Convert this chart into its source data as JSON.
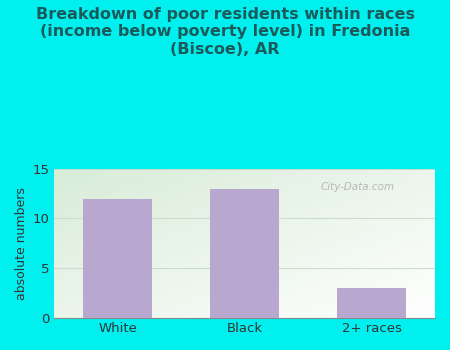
{
  "categories": [
    "White",
    "Black",
    "2+ races"
  ],
  "values": [
    12,
    13,
    3
  ],
  "bar_color": "#b8a8d0",
  "title": "Breakdown of poor residents within races\n(income below poverty level) in Fredonia\n(Biscoe), AR",
  "ylabel": "absolute numbers",
  "ylim": [
    0,
    15
  ],
  "yticks": [
    0,
    5,
    10,
    15
  ],
  "bg_color": "#00f0f0",
  "plot_bg_topleft": "#d8ecd8",
  "plot_bg_bottomright": "#ffffff",
  "title_fontsize": 11.5,
  "title_color": "#1a5a5a",
  "axis_label_fontsize": 9,
  "tick_fontsize": 9.5,
  "watermark": "City-Data.com",
  "grid_color": "#ccddcc"
}
